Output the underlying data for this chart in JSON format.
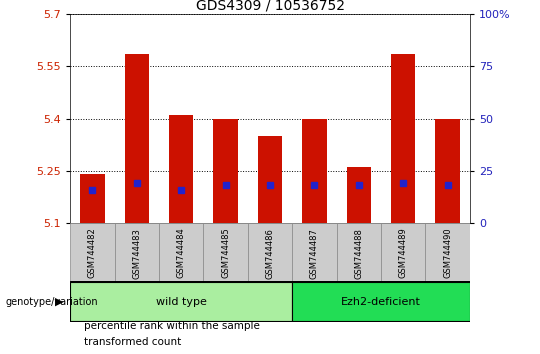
{
  "title": "GDS4309 / 10536752",
  "samples": [
    "GSM744482",
    "GSM744483",
    "GSM744484",
    "GSM744485",
    "GSM744486",
    "GSM744487",
    "GSM744488",
    "GSM744489",
    "GSM744490"
  ],
  "transformed_count": [
    5.24,
    5.585,
    5.41,
    5.4,
    5.35,
    5.4,
    5.26,
    5.585,
    5.4
  ],
  "percentile_rank": [
    5.195,
    5.215,
    5.195,
    5.21,
    5.21,
    5.21,
    5.21,
    5.215,
    5.21
  ],
  "base_value": 5.1,
  "ylim": [
    5.1,
    5.7
  ],
  "yticks_left": [
    5.1,
    5.25,
    5.4,
    5.55,
    5.7
  ],
  "yticks_left_labels": [
    "5.1",
    "5.25",
    "5.4",
    "5.55",
    "5.7"
  ],
  "yticks_right": [
    0,
    25,
    50,
    75,
    100
  ],
  "yticks_right_labels": [
    "0",
    "25",
    "50",
    "75",
    "100%"
  ],
  "groups": [
    {
      "label": "wild type",
      "start": 0,
      "end": 4,
      "color": "#AAEEA0"
    },
    {
      "label": "Ezh2-deficient",
      "start": 5,
      "end": 8,
      "color": "#22DD55"
    }
  ],
  "bar_color": "#CC1100",
  "percentile_color": "#2222CC",
  "bg_color": "#FFFFFF",
  "plot_bg": "#FFFFFF",
  "tick_color_left": "#CC2200",
  "tick_color_right": "#2222BB",
  "grid_linestyle": "dotted",
  "grid_color": "#000000",
  "legend_items": [
    {
      "label": "transformed count",
      "color": "#CC1100"
    },
    {
      "label": "percentile rank within the sample",
      "color": "#2222CC"
    }
  ],
  "group_row_label": "genotype/variation",
  "sample_bg_color": "#CCCCCC",
  "bar_width": 0.55
}
